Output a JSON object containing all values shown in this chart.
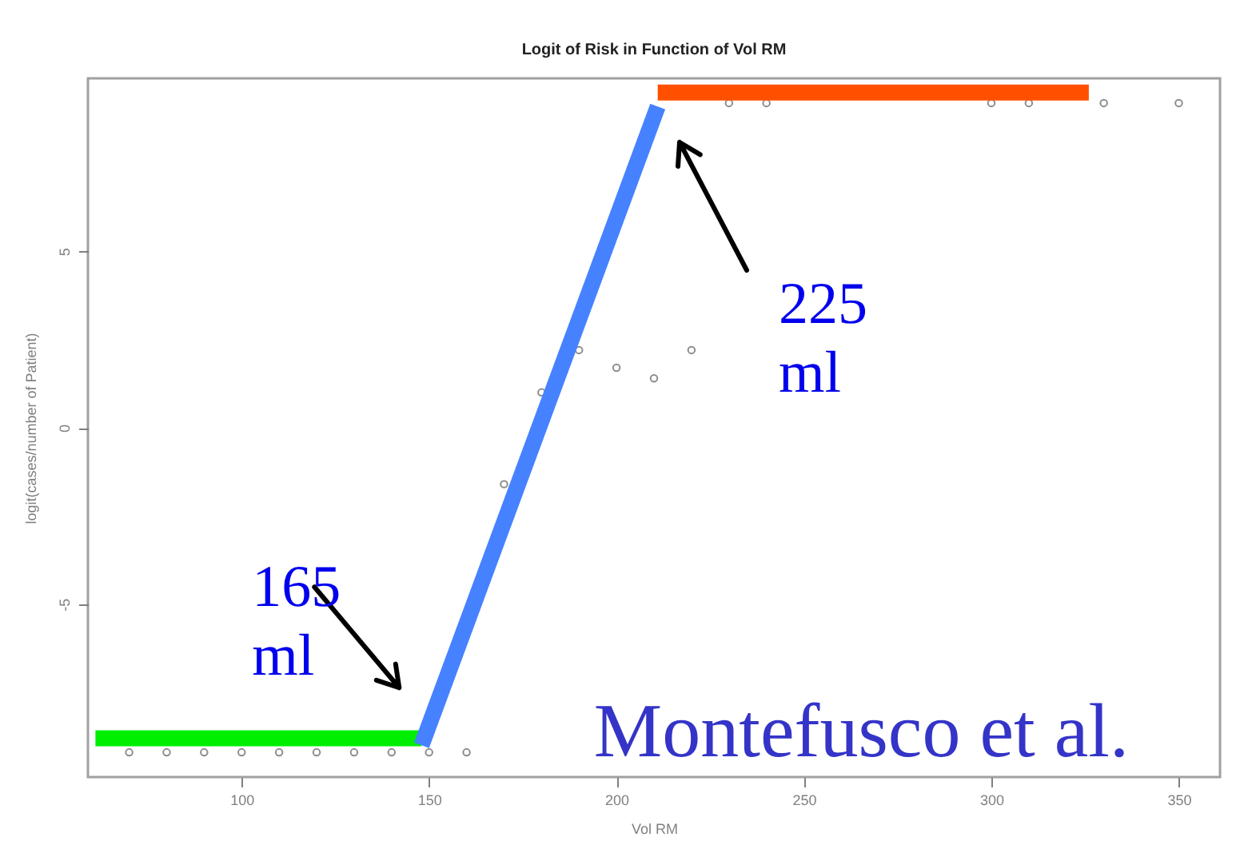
{
  "chart_data": {
    "type": "scatter",
    "title": "Logit of Risk in Function of Vol RM",
    "xlabel": "Vol RM",
    "ylabel": "logit(cases/number of Patient)",
    "xlim": [
      59,
      361
    ],
    "ylim": [
      -9.9,
      9.9
    ],
    "xticks": [
      100,
      150,
      200,
      250,
      300,
      350
    ],
    "yticks": [
      -5,
      0,
      5
    ],
    "series": [
      {
        "color": "#8c8c8c",
        "marker": "circle",
        "x": [
          70,
          80,
          90,
          100,
          110,
          120,
          130,
          140,
          150,
          160,
          170,
          180,
          190,
          200,
          210,
          220,
          230,
          240,
          300,
          310,
          330,
          350
        ],
        "values": [
          -9.2,
          -9.2,
          -9.2,
          -9.2,
          -9.2,
          -9.2,
          -9.2,
          -9.2,
          -9.2,
          -9.2,
          -1.6,
          1.0,
          2.2,
          1.7,
          1.4,
          2.2,
          9.2,
          9.2,
          9.2,
          9.2,
          9.2,
          9.2
        ]
      },
      {
        "type": "line",
        "color": "#00ee00",
        "x": [
          61,
          148
        ],
        "values": [
          -8.8,
          -8.8
        ]
      },
      {
        "type": "line",
        "color": "#4682ff",
        "x": [
          148,
          211
        ],
        "values": [
          -9.0,
          9.1
        ]
      },
      {
        "type": "line",
        "color": "#ff5000",
        "x": [
          211,
          326
        ],
        "values": [
          9.5,
          9.5
        ]
      }
    ],
    "annotations": [
      {
        "text": "165 ml",
        "x": 148,
        "y": -9.0
      },
      "225 ml",
      "Montefusco et al."
    ]
  }
}
